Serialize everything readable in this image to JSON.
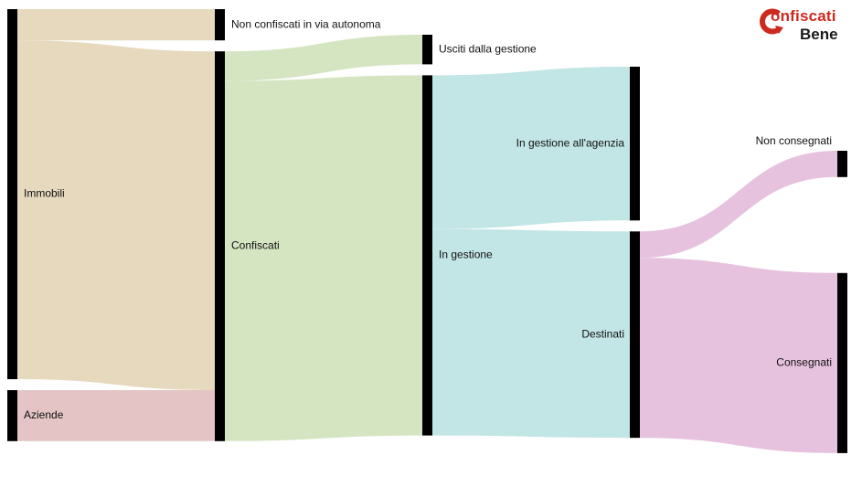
{
  "logo": {
    "line1": "onfiscati",
    "line2": "Bene",
    "ring_color": "#cc2a1f"
  },
  "chart_data": {
    "type": "sankey",
    "nodes": [
      {
        "id": "immobili",
        "label": "Immobili",
        "column": 0
      },
      {
        "id": "aziende",
        "label": "Aziende",
        "column": 0
      },
      {
        "id": "non_confiscati",
        "label": "Non confiscati in via autonoma",
        "column": 1
      },
      {
        "id": "confiscati",
        "label": "Confiscati",
        "column": 1
      },
      {
        "id": "usciti",
        "label": "Usciti dalla gestione",
        "column": 2
      },
      {
        "id": "in_gestione",
        "label": "In gestione",
        "column": 2
      },
      {
        "id": "agenzia",
        "label": "In gestione all'agenzia",
        "column": 3
      },
      {
        "id": "destinati",
        "label": "Destinati",
        "column": 3
      },
      {
        "id": "non_consegnati",
        "label": "Non consegnati",
        "column": 4
      },
      {
        "id": "consegnati",
        "label": "Consegnati",
        "column": 4
      }
    ],
    "links": [
      {
        "source": "immobili",
        "target": "non_confiscati",
        "value": 38,
        "color": "#e6d9bd"
      },
      {
        "source": "immobili",
        "target": "confiscati",
        "value": 412,
        "color": "#e6d9bd"
      },
      {
        "source": "aziende",
        "target": "confiscati",
        "value": 62,
        "color": "#e4c4c4"
      },
      {
        "source": "confiscati",
        "target": "usciti",
        "value": 36,
        "color": "#d5e5c2"
      },
      {
        "source": "confiscati",
        "target": "in_gestione",
        "value": 438,
        "color": "#d5e5c2"
      },
      {
        "source": "in_gestione",
        "target": "agenzia",
        "value": 187,
        "color": "#c2e5e5"
      },
      {
        "source": "in_gestione",
        "target": "destinati",
        "value": 251,
        "color": "#c2e5e5"
      },
      {
        "source": "destinati",
        "target": "non_consegnati",
        "value": 32,
        "color": "#e6c2de"
      },
      {
        "source": "destinati",
        "target": "consegnati",
        "value": 219,
        "color": "#e6c2de"
      }
    ],
    "node_color": "#000000"
  }
}
